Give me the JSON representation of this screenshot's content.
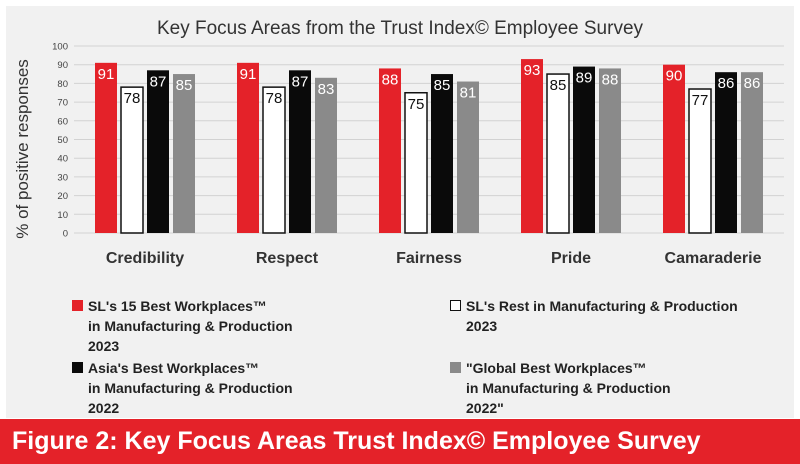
{
  "chart_data": {
    "type": "bar",
    "title": "Key Focus Areas from the Trust Index© Employee Survey",
    "ylabel": "% of positive responses",
    "xlabel": "",
    "ylim": [
      0,
      100
    ],
    "yticks": [
      0,
      10,
      20,
      30,
      40,
      50,
      60,
      70,
      80,
      90,
      100
    ],
    "grid": true,
    "legend_position": "bottom",
    "categories": [
      "Credibility",
      "Respect",
      "Fairness",
      "Pride",
      "Camaraderie"
    ],
    "series": [
      {
        "name": "SL's 15 Best Workplaces™\nin Manufacturing & Production\n2023",
        "color": "#e42229",
        "label_color": "#ffffff",
        "stroke": "none",
        "values": [
          91,
          91,
          88,
          93,
          90
        ]
      },
      {
        "name": "SL's Rest in Manufacturing & Production\n2023",
        "color": "#ffffff",
        "label_color": "#111111",
        "stroke": "#111111",
        "values": [
          78,
          78,
          75,
          85,
          77
        ]
      },
      {
        "name": "Asia's Best Workplaces™\nin Manufacturing & Production\n2022",
        "color": "#0a0a0a",
        "label_color": "#ffffff",
        "stroke": "none",
        "values": [
          87,
          87,
          85,
          89,
          86
        ]
      },
      {
        "name": "\"Global Best Workplaces™\nin Manufacturing & Production\n2022\"",
        "color": "#8a8a8a",
        "label_color": "#ffffff",
        "stroke": "none",
        "values": [
          85,
          83,
          81,
          88,
          86
        ]
      }
    ]
  },
  "caption": "Figure 2: Key Focus Areas Trust Index© Employee Survey"
}
